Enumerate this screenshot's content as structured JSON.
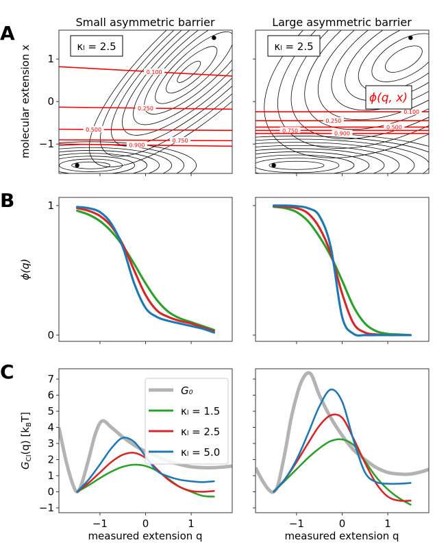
{
  "panel_letters": [
    "A",
    "B",
    "C"
  ],
  "chart_data": [
    {
      "panel": "A",
      "type": "contour",
      "titles": [
        "Small asymmetric barrier",
        "Large asymmetric barrier"
      ],
      "ylabel": "molecular extension x",
      "xlim": [
        -1.9,
        1.9
      ],
      "ylim": [
        -1.69,
        1.68
      ],
      "yticks": [
        "1",
        "0",
        "−1"
      ],
      "ytick_values": [
        1,
        0,
        -1
      ],
      "xtick_values": [
        -1,
        0,
        1
      ],
      "kappa_box": "κₗ = 2.5",
      "phi_box": "ϕ(q, x)",
      "minima": [
        [
          -1.5,
          -1.5
        ],
        [
          1.5,
          1.5
        ]
      ],
      "phi_contours": [
        [
          {
            "label": "0.100",
            "x_start": 0.82,
            "x_end": 0.6
          },
          {
            "label": "0.250",
            "x_start": -0.13,
            "x_end": -0.18
          },
          {
            "label": "0.500",
            "x_start": -0.65,
            "x_end": -0.68
          },
          {
            "label": "0.750",
            "x_start": -0.9,
            "x_end": -0.92
          },
          {
            "label": "0.900",
            "x_start": -1.0,
            "x_end": -1.05
          }
        ],
        [
          {
            "label": "0.100",
            "x_start": -0.24,
            "x_end": -0.24
          },
          {
            "label": "0.250",
            "x_start": -0.45,
            "x_end": -0.45
          },
          {
            "label": "0.500",
            "x_start": -0.6,
            "x_end": -0.6
          },
          {
            "label": "0.750",
            "x_start": -0.68,
            "x_end": -0.68
          },
          {
            "label": "0.900",
            "x_start": -0.75,
            "x_end": -0.75
          }
        ]
      ]
    },
    {
      "panel": "B",
      "type": "line",
      "ylabel": "ϕ(q)",
      "xlim": [
        -1.9,
        1.9
      ],
      "ylim": [
        -0.048,
        1.063
      ],
      "yticks": [
        "1",
        "0"
      ],
      "ytick_values": [
        1,
        0
      ],
      "xtick_values": [
        -1,
        0,
        1
      ],
      "x": [
        -1.5,
        -1.25,
        -1.0,
        -0.75,
        -0.5,
        -0.25,
        0,
        0.25,
        0.5,
        0.75,
        1.0,
        1.25,
        1.5
      ],
      "series": [
        [
          {
            "name": "kappa 1.5",
            "color": "#2ca02c",
            "values": [
              0.96,
              0.93,
              0.88,
              0.8,
              0.69,
              0.55,
              0.4,
              0.27,
              0.18,
              0.13,
              0.1,
              0.07,
              0.04
            ]
          },
          {
            "name": "kappa 2.5",
            "color": "#d62728",
            "values": [
              0.98,
              0.96,
              0.92,
              0.84,
              0.7,
              0.5,
              0.31,
              0.19,
              0.14,
              0.11,
              0.09,
              0.06,
              0.03
            ]
          },
          {
            "name": "kappa 5.0",
            "color": "#1f77b4",
            "values": [
              0.99,
              0.98,
              0.95,
              0.86,
              0.68,
              0.4,
              0.21,
              0.14,
              0.11,
              0.09,
              0.07,
              0.05,
              0.02
            ]
          }
        ],
        [
          {
            "name": "kappa 1.5",
            "color": "#2ca02c",
            "values": [
              0.99,
              0.98,
              0.95,
              0.88,
              0.76,
              0.61,
              0.42,
              0.22,
              0.09,
              0.03,
              0.01,
              0.005,
              0
            ]
          },
          {
            "name": "kappa 2.5",
            "color": "#d62728",
            "values": [
              0.995,
              0.99,
              0.98,
              0.94,
              0.83,
              0.63,
              0.32,
              0.09,
              0.02,
              0.005,
              0,
              0,
              0
            ]
          },
          {
            "name": "kappa 5.0",
            "color": "#1f77b4",
            "values": [
              1,
              1,
              0.995,
              0.98,
              0.92,
              0.68,
              0.14,
              0.01,
              0,
              0,
              0,
              0,
              0
            ]
          }
        ]
      ]
    },
    {
      "panel": "C",
      "type": "line",
      "ylabel": "G_CI(q) [k_B T]",
      "ylabel_parts": {
        "G": "G",
        "sub": "CI",
        "q": "(q) [k",
        "B": "B",
        "T": "T]"
      },
      "xlabel": "measured extension q",
      "xlim": [
        -1.9,
        1.9
      ],
      "ylim": [
        -1.3,
        7.64
      ],
      "yticks": [
        "7",
        "6",
        "5",
        "4",
        "3",
        "2",
        "1",
        "0",
        "−1"
      ],
      "ytick_values": [
        7,
        6,
        5,
        4,
        3,
        2,
        1,
        0,
        -1
      ],
      "xticks": [
        "−1",
        "0",
        "1"
      ],
      "xtick_values": [
        -1,
        0,
        1
      ],
      "legend": {
        "position": "upper-right",
        "entries": [
          "G₀",
          "κₗ = 1.5",
          "κₗ = 2.5",
          "κₗ = 5.0"
        ]
      },
      "g0": [
        {
          "color": "#b3b3b3",
          "x": [
            -1.9,
            -1.75,
            -1.6,
            -1.5,
            -1.4,
            -1.25,
            -1.1,
            -0.95,
            -0.75,
            -0.5,
            -0.25,
            0,
            0.25,
            0.5,
            0.75,
            1.0,
            1.25,
            1.5,
            1.75,
            1.9
          ],
          "values": [
            4.0,
            2.0,
            0.5,
            0.0,
            0.5,
            2.0,
            3.6,
            4.4,
            4.0,
            3.4,
            2.9,
            2.5,
            2.2,
            1.9,
            1.7,
            1.55,
            1.5,
            1.5,
            1.55,
            1.6
          ]
        },
        {
          "color": "#b3b3b3",
          "x": [
            -1.9,
            -1.75,
            -1.6,
            -1.5,
            -1.4,
            -1.25,
            -1.1,
            -0.9,
            -0.7,
            -0.5,
            -0.25,
            0,
            0.25,
            0.5,
            0.75,
            1.0,
            1.25,
            1.5,
            1.75,
            1.9
          ],
          "values": [
            1.5,
            0.7,
            0.1,
            0.0,
            0.5,
            2.5,
            4.8,
            6.8,
            7.35,
            6.0,
            4.6,
            3.5,
            2.6,
            2.0,
            1.5,
            1.2,
            1.1,
            1.1,
            1.25,
            1.4
          ]
        }
      ],
      "x": [
        -1.5,
        -1.25,
        -1.0,
        -0.75,
        -0.5,
        -0.25,
        0,
        0.25,
        0.5,
        0.75,
        1.0,
        1.25,
        1.5
      ],
      "series": [
        [
          {
            "name": "kappa 1.5",
            "color": "#2ca02c",
            "values": [
              0,
              0.4,
              0.85,
              1.25,
              1.55,
              1.68,
              1.6,
              1.3,
              0.8,
              0.3,
              0.0,
              -0.25,
              -0.3
            ]
          },
          {
            "name": "kappa 2.5",
            "color": "#d62728",
            "values": [
              0,
              0.55,
              1.2,
              1.85,
              2.3,
              2.42,
              2.1,
              1.4,
              0.75,
              0.3,
              0.05,
              0.0,
              0.05
            ]
          },
          {
            "name": "kappa 5.0",
            "color": "#1f77b4",
            "values": [
              0,
              0.75,
              1.7,
              2.7,
              3.35,
              3.1,
              2.2,
              1.3,
              0.95,
              0.75,
              0.65,
              0.6,
              0.65
            ]
          }
        ],
        [
          {
            "name": "kappa 1.5",
            "color": "#2ca02c",
            "values": [
              0,
              0.7,
              1.4,
              2.1,
              2.7,
              3.15,
              3.25,
              2.9,
              1.9,
              0.9,
              0.15,
              -0.4,
              -0.8
            ]
          },
          {
            "name": "kappa 2.5",
            "color": "#d62728",
            "values": [
              0,
              0.8,
              1.85,
              3.0,
              4.1,
              4.75,
              4.6,
              3.3,
              1.8,
              0.5,
              -0.3,
              -0.55,
              -0.55
            ]
          },
          {
            "name": "kappa 5.0",
            "color": "#1f77b4",
            "values": [
              0,
              0.8,
              2.0,
              3.6,
              5.3,
              6.35,
              5.6,
              3.2,
              1.2,
              0.6,
              0.5,
              0.5,
              0.55
            ]
          }
        ]
      ]
    }
  ]
}
